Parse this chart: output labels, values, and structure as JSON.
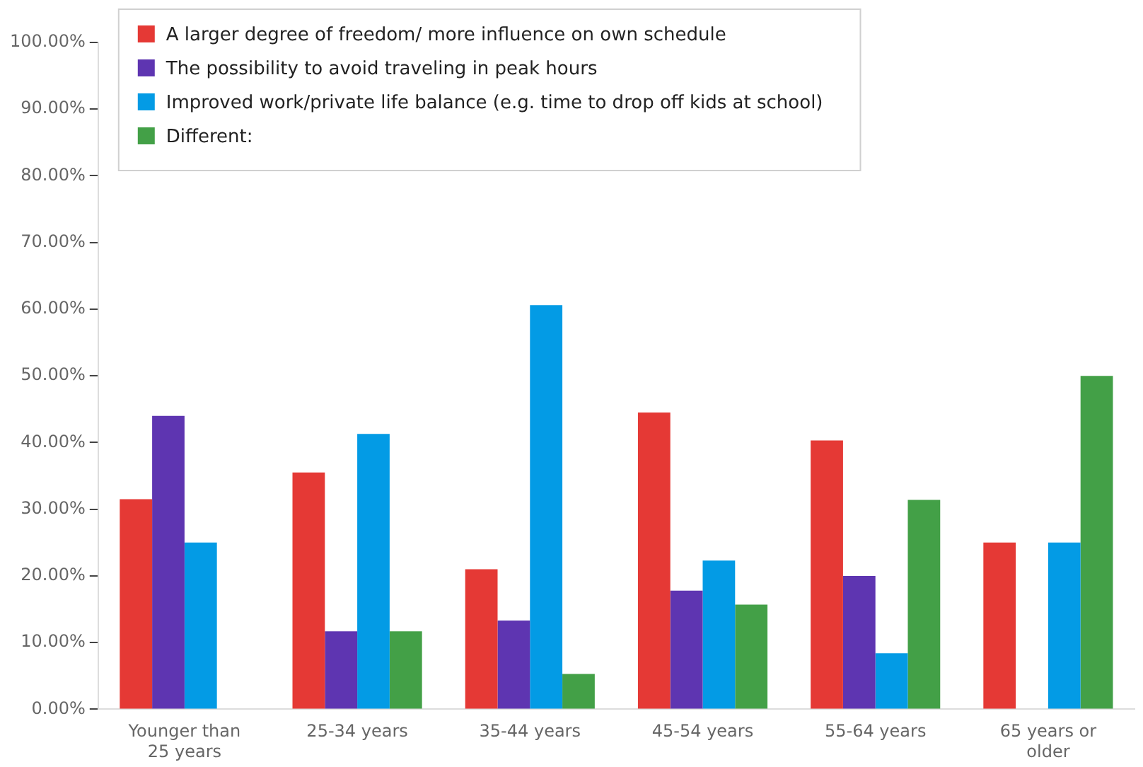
{
  "chart_data": {
    "type": "bar",
    "categories": [
      "Younger than 25 years",
      "25-34 years",
      "35-44 years",
      "45-54 years",
      "55-64 years",
      "65 years or older"
    ],
    "series": [
      {
        "name": "A larger degree of freedom/ more influence on own schedule",
        "color": "#e53935",
        "values": [
          31.5,
          35.5,
          21,
          44.5,
          40.3,
          25
        ]
      },
      {
        "name": "The possibility to avoid traveling in peak hours",
        "color": "#5e35b1",
        "values": [
          44,
          11.7,
          13.3,
          17.8,
          20,
          0
        ]
      },
      {
        "name": "Improved work/private life balance (e.g. time to drop off kids at school)",
        "color": "#039be5",
        "values": [
          25,
          41.3,
          60.6,
          22.3,
          8.4,
          25
        ]
      },
      {
        "name": "Different:",
        "color": "#43a047",
        "values": [
          0,
          11.7,
          5.3,
          15.7,
          31.4,
          50
        ]
      }
    ],
    "ylim": [
      0,
      100
    ],
    "yticks": [
      {
        "value": 0,
        "label": "0.00%"
      },
      {
        "value": 10,
        "label": "10.00%"
      },
      {
        "value": 20,
        "label": "20.00%"
      },
      {
        "value": 30,
        "label": "30.00%"
      },
      {
        "value": 40,
        "label": "40.00%"
      },
      {
        "value": 50,
        "label": "50.00%"
      },
      {
        "value": 60,
        "label": "60.00%"
      },
      {
        "value": 70,
        "label": "70.00%"
      },
      {
        "value": 80,
        "label": "80.00%"
      },
      {
        "value": 90,
        "label": "90.00%"
      },
      {
        "value": 100,
        "label": "100.00%"
      }
    ],
    "grid": false,
    "legend": "top left"
  }
}
